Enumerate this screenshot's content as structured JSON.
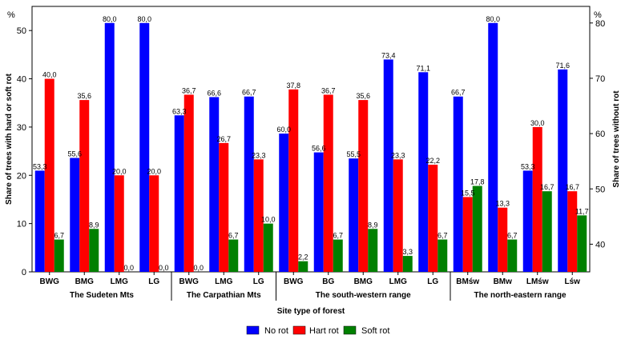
{
  "chart_data": {
    "type": "bar",
    "xlabel": "Site type of forest",
    "ylabel_left": "Share of trees with hard or soft rot",
    "ylabel_right": "Share of trees without rot",
    "unit_left": "%",
    "unit_right": "%",
    "ylim_left": [
      0,
      55
    ],
    "ylim_right": [
      35,
      83
    ],
    "yticks_left": [
      0,
      10,
      20,
      30,
      40,
      50
    ],
    "yticks_right": [
      40,
      50,
      60,
      70,
      80
    ],
    "legend_position": "bottom-center",
    "colors": {
      "No rot": "#0000ff",
      "Hart rot": "#ff0000",
      "Soft rot": "#008000"
    },
    "groups": [
      {
        "name": "The Sudeten Mts",
        "categories": [
          "BWG",
          "BMG",
          "LMG",
          "LG"
        ],
        "no_rot": [
          53.3,
          55.6,
          80.0,
          80.0
        ],
        "no_rot_labels": [
          "53,3",
          "55,6",
          "80,0",
          "80,0"
        ],
        "hart_rot": [
          40.0,
          35.6,
          20.0,
          20.0
        ],
        "hart_rot_labels": [
          "40,0",
          "35,6",
          "20,0",
          "20,0"
        ],
        "soft_rot": [
          6.7,
          8.9,
          0.0,
          0.0
        ],
        "soft_rot_labels": [
          "6,7",
          "8,9",
          "0,0",
          "0,0"
        ]
      },
      {
        "name": "The Carpathian Mts",
        "categories": [
          "BWG",
          "LMG",
          "LG"
        ],
        "no_rot": [
          63.3,
          66.6,
          66.7
        ],
        "no_rot_labels": [
          "63,3",
          "66,6",
          "66,7"
        ],
        "hart_rot": [
          36.7,
          26.7,
          23.3
        ],
        "hart_rot_labels": [
          "36,7",
          "26,7",
          "23,3"
        ],
        "soft_rot": [
          0.0,
          6.7,
          10.0
        ],
        "soft_rot_labels": [
          "0,0",
          "6,7",
          "10,0"
        ]
      },
      {
        "name": "The south-western range",
        "categories": [
          "BWG",
          "BG",
          "BMG",
          "LMG",
          "LG"
        ],
        "no_rot": [
          60.0,
          56.6,
          55.5,
          73.4,
          71.1
        ],
        "no_rot_labels": [
          "60,0",
          "56,6",
          "55,5",
          "73,4",
          "71,1"
        ],
        "hart_rot": [
          37.8,
          36.7,
          35.6,
          23.3,
          22.2
        ],
        "hart_rot_labels": [
          "37,8",
          "36,7",
          "35,6",
          "23,3",
          "22,2"
        ],
        "soft_rot": [
          2.2,
          6.7,
          8.9,
          3.3,
          6.7
        ],
        "soft_rot_labels": [
          "2,2",
          "6,7",
          "8,9",
          "3,3",
          "6,7"
        ]
      },
      {
        "name": "The north-eastern range",
        "categories": [
          "BMśw",
          "BMw",
          "LMśw",
          "Lśw"
        ],
        "no_rot": [
          66.7,
          80.0,
          53.3,
          71.6
        ],
        "no_rot_labels": [
          "66,7",
          "80,0",
          "53,3",
          "71,6"
        ],
        "hart_rot": [
          15.5,
          13.3,
          30.0,
          16.7
        ],
        "hart_rot_labels": [
          "15,5",
          "13,3",
          "30,0",
          "16,7"
        ],
        "soft_rot": [
          17.8,
          6.7,
          16.7,
          11.7
        ],
        "soft_rot_labels": [
          "17,8",
          "6,7",
          "16,7",
          "11,7"
        ]
      }
    ],
    "legend": [
      "No rot",
      "Hart rot",
      "Soft rot"
    ]
  }
}
